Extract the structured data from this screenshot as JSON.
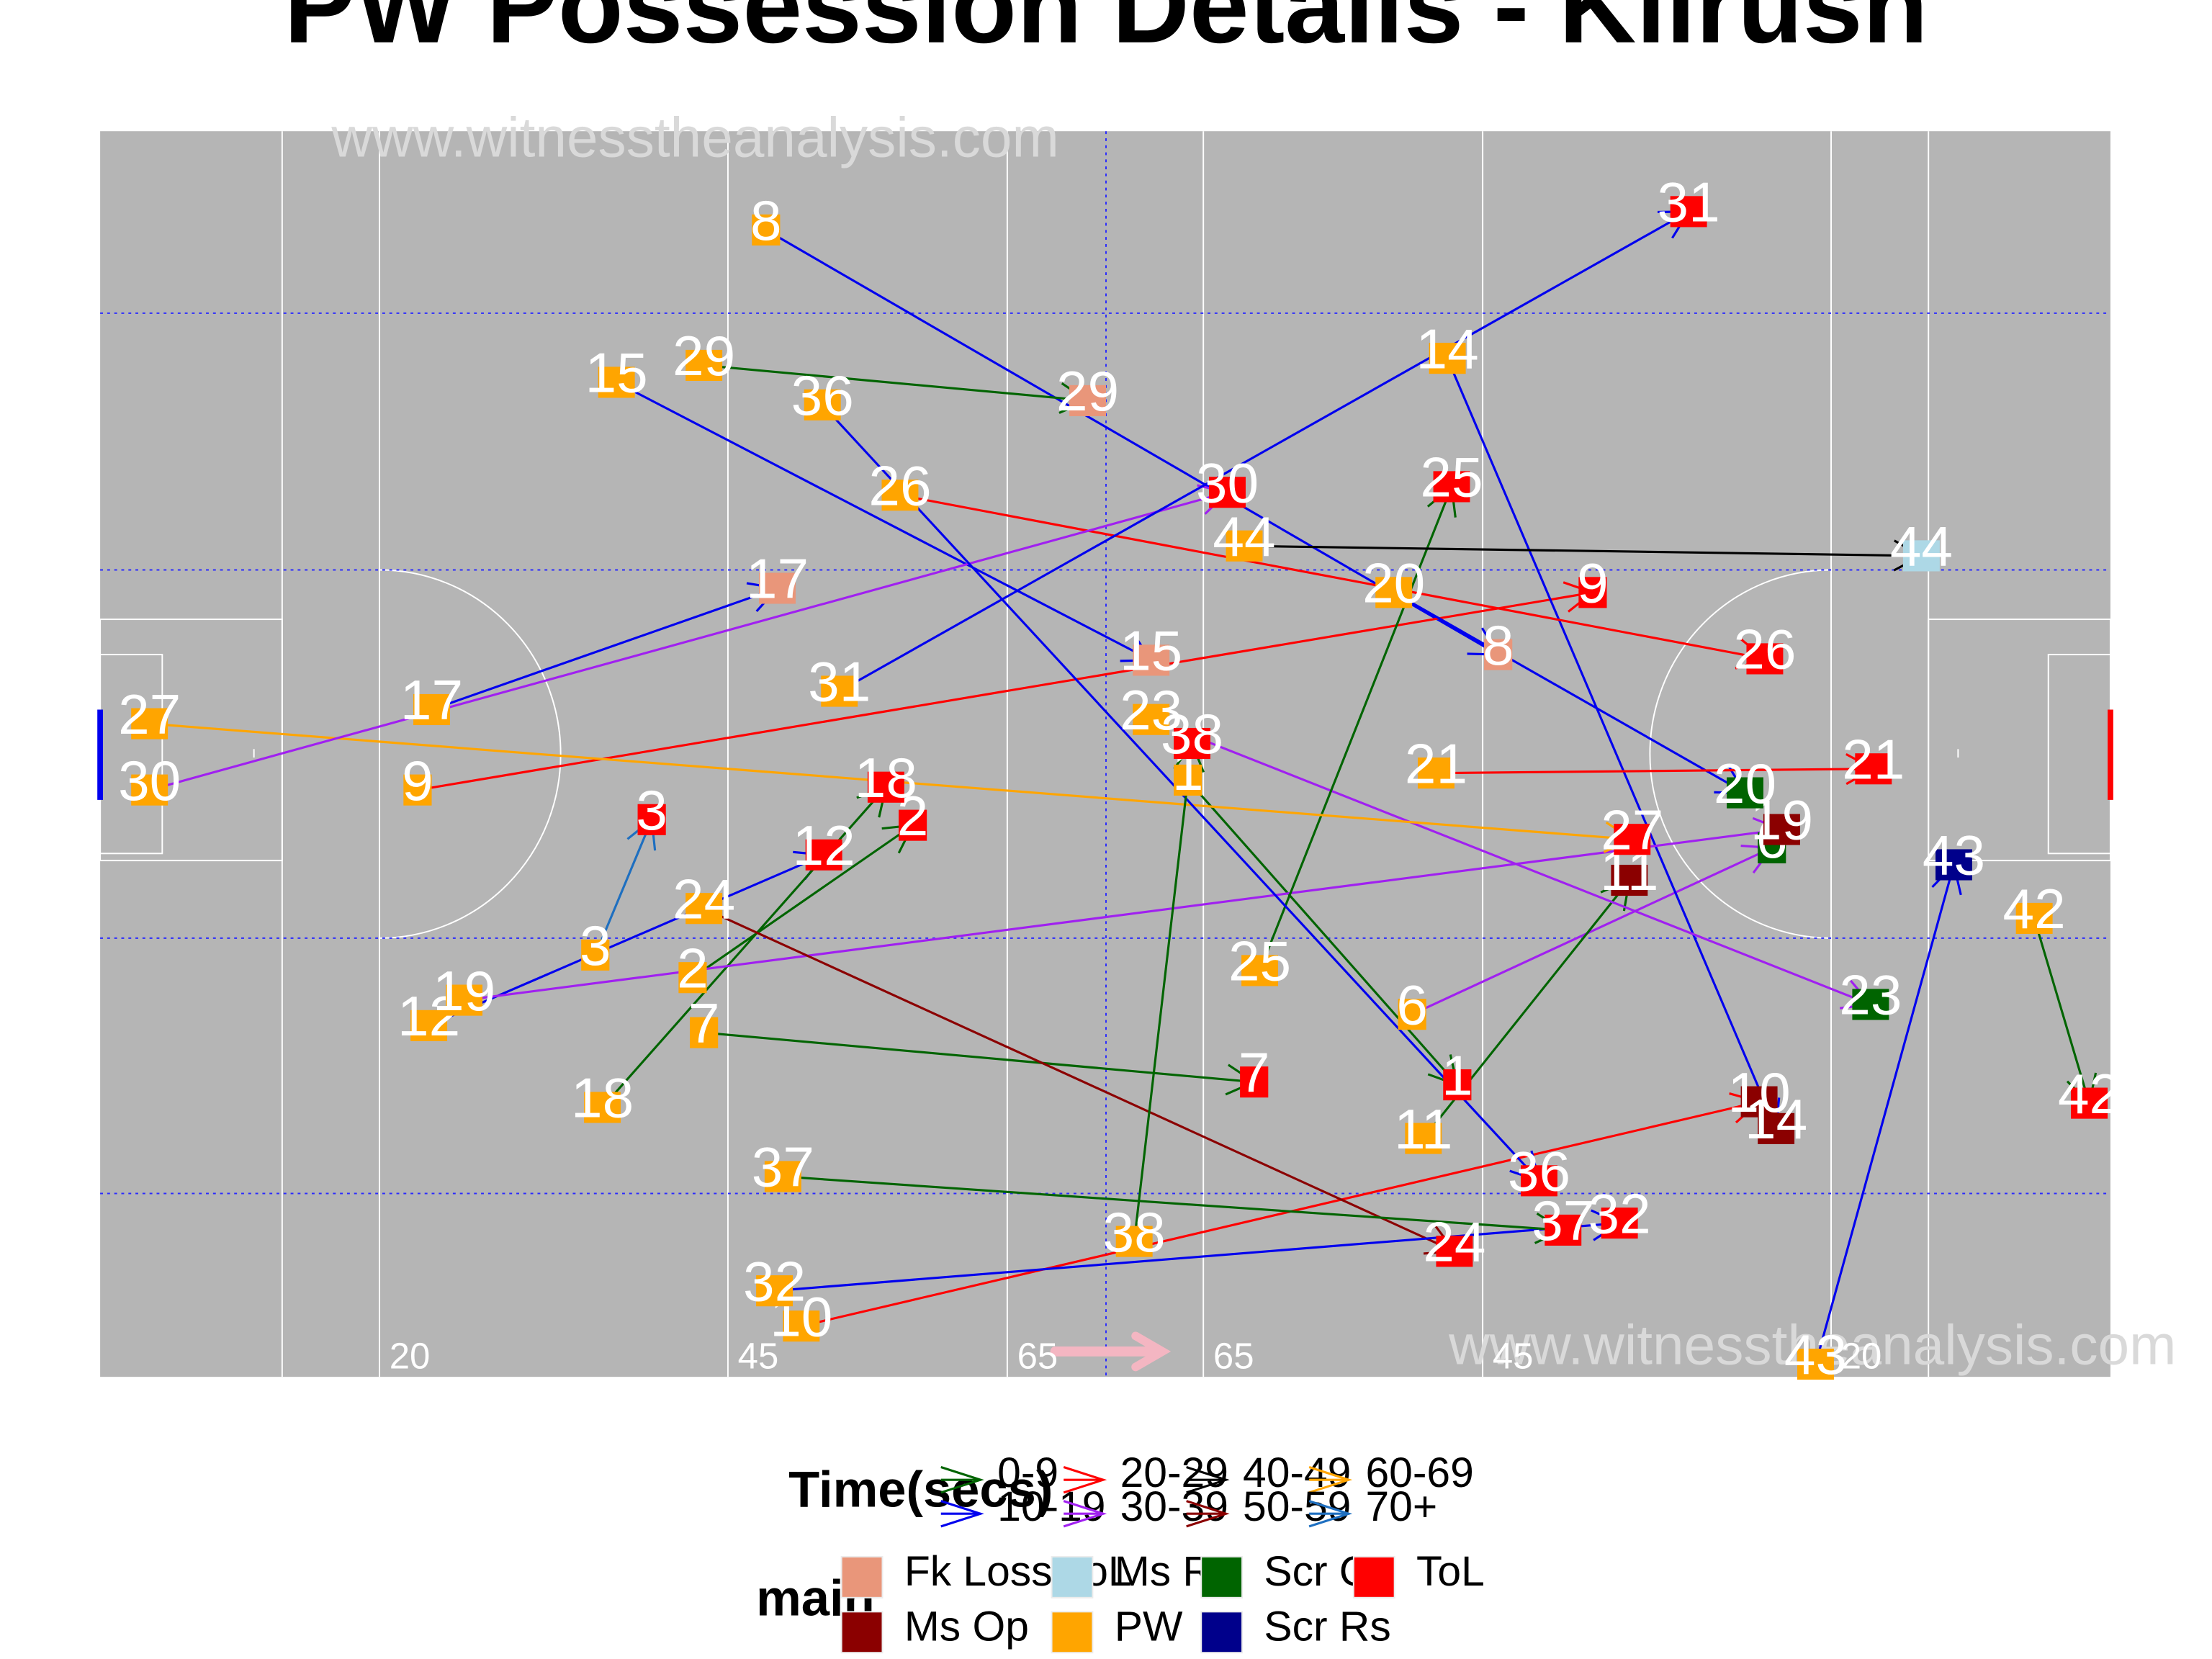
{
  "chart_data": {
    "type": "scatter",
    "title": "PW Possession Details - Kilrush",
    "watermarks": [
      "www.witnesstheanalysis.com",
      "www.witnesstheanalysis.com"
    ],
    "yard_labels": [
      "20",
      "45",
      "65",
      "65",
      "45",
      "20"
    ],
    "colors": {
      "time": {
        "0-9": "#006400",
        "10-19": "#0000ee",
        "20-29": "#ff0000",
        "30-39": "#a020f0",
        "40-49": "#000000",
        "50-59": "#8b0000",
        "60-69": "#ffa500",
        "70+": "#1e6fc0"
      },
      "main": {
        "Fk Loss ToL": "#e9967a",
        "Ms Rs": "#add8e6",
        "Scr Op": "#006400",
        "ToL": "#ff0000",
        "Ms Op": "#8b0000",
        "PW": "#ffa500",
        "Scr Rs": "#00008b"
      }
    },
    "legend": {
      "time_title": "Time(secs)",
      "time_items": [
        "0-9",
        "20-29",
        "40-49",
        "60-69",
        "10-19",
        "30-39",
        "50-59",
        "70+"
      ],
      "main_title": "main",
      "main_items": [
        "Fk Loss ToL",
        "Ms Rs",
        "Scr Op",
        "ToL",
        "Ms Op",
        "PW",
        "Scr Rs"
      ]
    },
    "possessions": [
      {
        "id": "1",
        "start": [
          842,
          553
        ],
        "end": [
          1033,
          769
        ],
        "time": "0-9",
        "end_type": "ToL"
      },
      {
        "id": "2",
        "start": [
          491,
          693
        ],
        "end": [
          647,
          585
        ],
        "time": "0-9",
        "end_type": "ToL"
      },
      {
        "id": "3",
        "start": [
          422,
          677
        ],
        "end": [
          462,
          581
        ],
        "time": "70+",
        "end_type": "ToL"
      },
      {
        "id": "6",
        "start": [
          1001,
          719
        ],
        "end": [
          1256,
          601
        ],
        "time": "30-39",
        "end_type": "Scr Op"
      },
      {
        "id": "7",
        "start": [
          499,
          732
        ],
        "end": [
          889,
          767
        ],
        "time": "0-9",
        "end_type": "ToL"
      },
      {
        "id": "8",
        "start": [
          543,
          163
        ],
        "end": [
          1062,
          464
        ],
        "time": "10-19",
        "end_type": "Fk Loss ToL"
      },
      {
        "id": "9",
        "start": [
          296,
          560
        ],
        "end": [
          1129,
          420
        ],
        "time": "20-29",
        "end_type": "ToL"
      },
      {
        "id": "10",
        "start": [
          568,
          940
        ],
        "end": [
          1247,
          781
        ],
        "time": "20-29",
        "end_type": "Ms Op"
      },
      {
        "id": "11",
        "start": [
          1009,
          807
        ],
        "end": [
          1155,
          624
        ],
        "time": "0-9",
        "end_type": "Ms Op"
      },
      {
        "id": "12",
        "start": [
          304,
          727
        ],
        "end": [
          584,
          606
        ],
        "time": "10-19",
        "end_type": "ToL"
      },
      {
        "id": "14",
        "start": [
          1026,
          254
        ],
        "end": [
          1259,
          800
        ],
        "time": "10-19",
        "end_type": "Ms Op"
      },
      {
        "id": "15",
        "start": [
          437,
          271
        ],
        "end": [
          816,
          468
        ],
        "time": "10-19",
        "end_type": "Fk Loss ToL"
      },
      {
        "id": "17",
        "start": [
          306,
          503
        ],
        "end": [
          551,
          417
        ],
        "time": "10-19",
        "end_type": "Fk Loss ToL"
      },
      {
        "id": "18",
        "start": [
          427,
          785
        ],
        "end": [
          628,
          558
        ],
        "time": "0-9",
        "end_type": "ToL"
      },
      {
        "id": "19",
        "start": [
          329,
          709
        ],
        "end": [
          1263,
          588
        ],
        "time": "30-39",
        "end_type": "Ms Op"
      },
      {
        "id": "20",
        "start": [
          988,
          420
        ],
        "end": [
          1237,
          562
        ],
        "time": "10-19",
        "end_type": "Scr Op"
      },
      {
        "id": "21",
        "start": [
          1018,
          548
        ],
        "end": [
          1328,
          545
        ],
        "time": "20-29",
        "end_type": "ToL"
      },
      {
        "id": "23",
        "start": [
          816,
          510
        ],
        "end": [
          1326,
          712
        ],
        "time": "30-39",
        "end_type": "Scr Op"
      },
      {
        "id": "24",
        "start": [
          499,
          644
        ],
        "end": [
          1031,
          887
        ],
        "time": "50-59",
        "end_type": "ToL"
      },
      {
        "id": "25",
        "start": [
          893,
          688
        ],
        "end": [
          1029,
          345
        ],
        "time": "0-9",
        "end_type": "ToL"
      },
      {
        "id": "26",
        "start": [
          638,
          351
        ],
        "end": [
          1251,
          467
        ],
        "time": "20-29",
        "end_type": "ToL"
      },
      {
        "id": "27",
        "start": [
          106,
          513
        ],
        "end": [
          1157,
          595
        ],
        "time": "60-69",
        "end_type": "ToL"
      },
      {
        "id": "29",
        "start": [
          499,
          259
        ],
        "end": [
          771,
          284
        ],
        "time": "0-9",
        "end_type": "Fk Loss ToL"
      },
      {
        "id": "30",
        "start": [
          106,
          560
        ],
        "end": [
          870,
          349
        ],
        "time": "30-39",
        "end_type": "ToL"
      },
      {
        "id": "31",
        "start": [
          595,
          490
        ],
        "end": [
          1197,
          150
        ],
        "time": "10-19",
        "end_type": "ToL"
      },
      {
        "id": "32",
        "start": [
          549,
          915
        ],
        "end": [
          1148,
          867
        ],
        "time": "10-19",
        "end_type": "ToL"
      },
      {
        "id": "36",
        "start": [
          583,
          287
        ],
        "end": [
          1091,
          837
        ],
        "time": "10-19",
        "end_type": "ToL"
      },
      {
        "id": "37",
        "start": [
          555,
          834
        ],
        "end": [
          1108,
          872
        ],
        "time": "0-9",
        "end_type": "ToL"
      },
      {
        "id": "38",
        "start": [
          804,
          880
        ],
        "end": [
          845,
          527
        ],
        "time": "0-9",
        "end_type": "ToL"
      },
      {
        "id": "42",
        "start": [
          1442,
          651
        ],
        "end": [
          1481,
          782
        ],
        "time": "0-9",
        "end_type": "ToL"
      },
      {
        "id": "43",
        "start": [
          1287,
          967
        ],
        "end": [
          1385,
          613
        ],
        "time": "10-19",
        "end_type": "Scr Rs"
      },
      {
        "id": "44",
        "start": [
          882,
          387
        ],
        "end": [
          1362,
          394
        ],
        "time": "40-49",
        "end_type": "Ms Rs"
      }
    ]
  }
}
